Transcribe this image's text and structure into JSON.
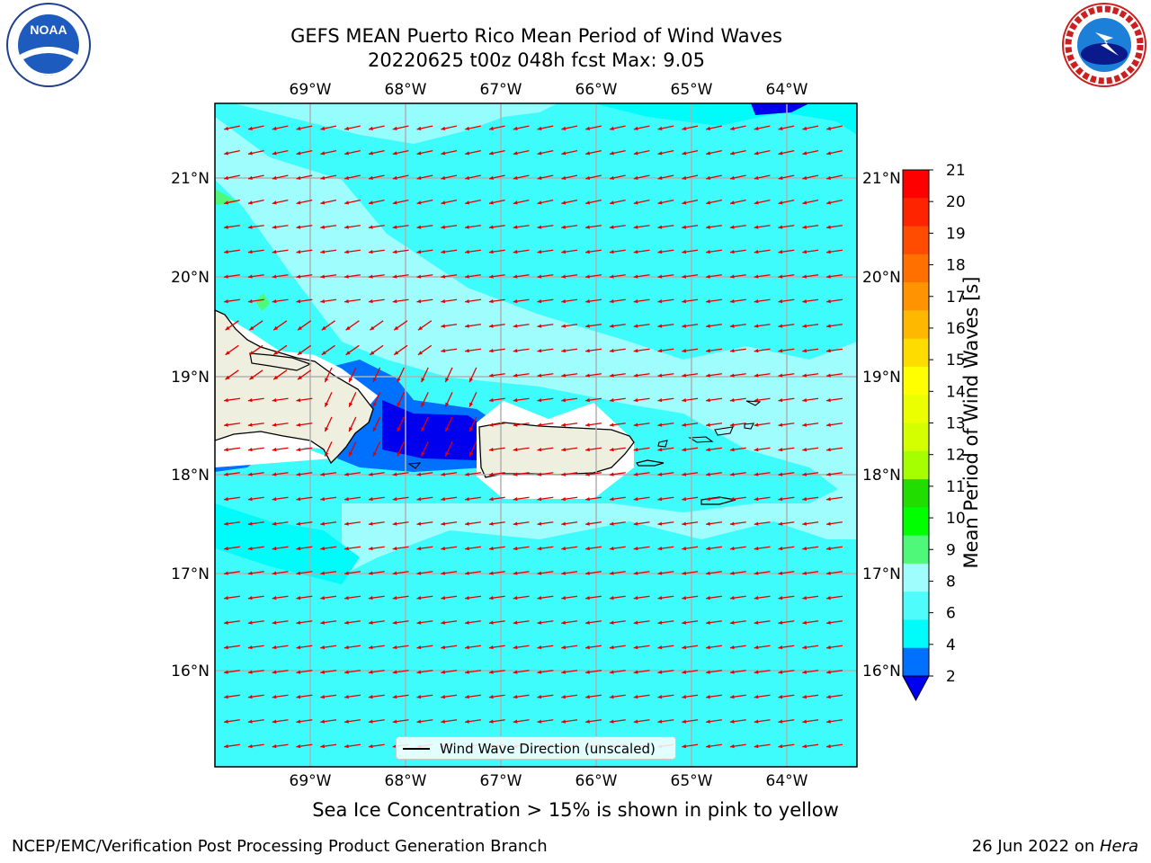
{
  "title": {
    "line1": "GEFS MEAN Puerto Rico Mean Period of Wind Waves",
    "line2": "20220625 t00z 048h fcst   Max: 9.05"
  },
  "logos": {
    "left": {
      "name": "noaa-logo",
      "text": "NOAA"
    },
    "right": {
      "name": "nws-logo",
      "text": "NATIONAL WEATHER SERVICE"
    }
  },
  "map": {
    "lon_labels": [
      "69°W",
      "68°W",
      "67°W",
      "66°W",
      "65°W",
      "64°W"
    ],
    "lat_labels": [
      "21°N",
      "20°N",
      "19°N",
      "18°N",
      "17°N",
      "16°N"
    ],
    "ocean_color": "#3ffcfc",
    "land_color": "#efefe0"
  },
  "colorbar": {
    "label": "Mean Period of Wind Waves [s]",
    "ticks": [
      "21",
      "20",
      "19",
      "18",
      "17",
      "16",
      "15",
      "14",
      "13",
      "12",
      "11",
      "10",
      "9",
      "8",
      "6",
      "4",
      "2"
    ],
    "colors": [
      "#ff0000",
      "#ff2400",
      "#ff4c00",
      "#ff7000",
      "#ff9400",
      "#ffb800",
      "#ffdc00",
      "#ffff00",
      "#ecff00",
      "#d4ff00",
      "#a6ff00",
      "#22dd00",
      "#00ff00",
      "#50f87a",
      "#a0fdfd",
      "#4ffcfc",
      "#00fbfb",
      "#0070ff",
      "#0000ef"
    ]
  },
  "legend": {
    "label": "Wind Wave Direction (unscaled)"
  },
  "sea_ice_note": "Sea Ice Concentration > 15% is shown in pink to yellow",
  "footer": {
    "left": "NCEP/EMC/Verification Post Processing Product Generation Branch",
    "date": "26 Jun 2022 on ",
    "system": "Hera"
  }
}
